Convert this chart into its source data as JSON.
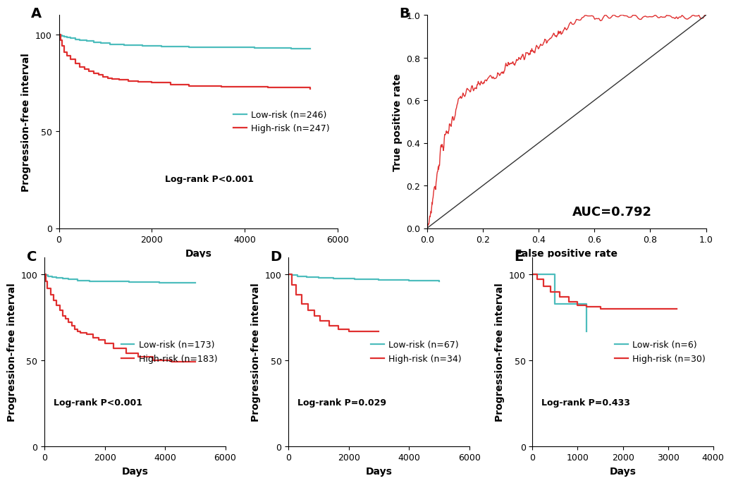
{
  "panel_A": {
    "low_risk_label": "Low-risk (n=246)",
    "high_risk_label": "High-risk (n=247)",
    "logrank_text": "Log-rank P<0.001",
    "low_color": "#4dbdbd",
    "high_color": "#e03030",
    "xlabel": "Days",
    "ylabel": "Progression-free interval",
    "xlim": [
      0,
      6000
    ],
    "ylim": [
      0,
      110
    ],
    "xticks": [
      0,
      2000,
      4000,
      6000
    ],
    "yticks": [
      0,
      50,
      100
    ],
    "low_x": [
      0,
      30,
      60,
      120,
      180,
      250,
      350,
      450,
      600,
      750,
      900,
      1100,
      1400,
      1800,
      2200,
      2800,
      3500,
      4200,
      5000,
      5400
    ],
    "low_y": [
      100,
      99.6,
      99.2,
      98.8,
      98.4,
      98.0,
      97.5,
      97.0,
      96.5,
      96.0,
      95.5,
      95.0,
      94.5,
      94.0,
      93.8,
      93.5,
      93.2,
      93.0,
      92.8,
      92.5
    ],
    "high_x": [
      0,
      30,
      60,
      120,
      180,
      250,
      350,
      450,
      550,
      650,
      750,
      850,
      950,
      1050,
      1150,
      1300,
      1500,
      1700,
      2000,
      2400,
      2800,
      3500,
      4500,
      5400
    ],
    "high_y": [
      100,
      97,
      94,
      91,
      89,
      87,
      85,
      83,
      82,
      81,
      80,
      79,
      78,
      77.5,
      77,
      76.5,
      76,
      75.5,
      75,
      74,
      73.5,
      73,
      72.5,
      72
    ]
  },
  "panel_B": {
    "auc_text": "AUC=0.792",
    "xlabel": "False positive rate",
    "ylabel": "True positive rate",
    "roc_color": "#e03030",
    "diag_color": "#333333",
    "xlim": [
      0,
      1.0
    ],
    "ylim": [
      0,
      1.0
    ],
    "xticks": [
      0.0,
      0.2,
      0.4,
      0.6,
      0.8,
      1.0
    ],
    "yticks": [
      0.0,
      0.2,
      0.4,
      0.6,
      0.8,
      1.0
    ]
  },
  "panel_C": {
    "low_risk_label": "Low-risk (n=173)",
    "high_risk_label": "High-risk (n=183)",
    "logrank_text": "Log-rank P<0.001",
    "low_color": "#4dbdbd",
    "high_color": "#e03030",
    "xlabel": "Days",
    "ylabel": "Progression-free interval",
    "xlim": [
      0,
      6000
    ],
    "ylim": [
      0,
      110
    ],
    "xticks": [
      0,
      2000,
      4000,
      6000
    ],
    "yticks": [
      0,
      50,
      100
    ],
    "low_x": [
      0,
      50,
      120,
      250,
      400,
      600,
      800,
      1100,
      1500,
      2000,
      2800,
      3800,
      5000
    ],
    "low_y": [
      100,
      99.5,
      99,
      98.5,
      98,
      97.5,
      97,
      96.5,
      96,
      95.8,
      95.5,
      95.3,
      95
    ],
    "high_x": [
      0,
      50,
      100,
      200,
      300,
      400,
      500,
      600,
      700,
      800,
      900,
      1000,
      1100,
      1200,
      1400,
      1600,
      1800,
      2000,
      2300,
      2700,
      3100,
      3600,
      4200,
      5000
    ],
    "high_y": [
      100,
      96,
      92,
      88,
      85,
      82,
      79,
      76,
      74,
      72,
      70,
      68,
      67,
      66,
      65,
      63,
      62,
      60,
      57,
      54,
      52,
      50,
      49,
      49
    ]
  },
  "panel_D": {
    "low_risk_label": "Low-risk (n=67)",
    "high_risk_label": "High-risk (n=34)",
    "logrank_text": "Log-rank P=0.029",
    "low_color": "#4dbdbd",
    "high_color": "#e03030",
    "xlabel": "Days",
    "ylabel": "Progression-free interval",
    "xlim": [
      0,
      6000
    ],
    "ylim": [
      0,
      110
    ],
    "xticks": [
      0,
      2000,
      4000,
      6000
    ],
    "yticks": [
      0,
      50,
      100
    ],
    "low_x": [
      0,
      100,
      300,
      600,
      1000,
      1500,
      2200,
      3000,
      4000,
      5000
    ],
    "low_y": [
      100,
      99.5,
      99,
      98.5,
      98,
      97.5,
      97,
      96.8,
      96.5,
      96
    ],
    "high_x": [
      0,
      100,
      250,
      450,
      650,
      850,
      1050,
      1350,
      1650,
      2000,
      2500,
      3000
    ],
    "high_y": [
      100,
      94,
      88,
      83,
      79,
      76,
      73,
      70,
      68,
      67,
      67,
      67
    ]
  },
  "panel_E": {
    "low_risk_label": "Low-risk (n=6)",
    "high_risk_label": "High-risk (n=30)",
    "logrank_text": "Log-rank P=0.433",
    "low_color": "#4dbdbd",
    "high_color": "#e03030",
    "xlabel": "Days",
    "ylabel": "Progression-free interval",
    "xlim": [
      0,
      4000
    ],
    "ylim": [
      0,
      110
    ],
    "xticks": [
      0,
      1000,
      2000,
      3000,
      4000
    ],
    "yticks": [
      0,
      50,
      100
    ],
    "low_x": [
      0,
      200,
      500,
      800,
      1200
    ],
    "low_y": [
      100,
      100,
      83,
      83,
      67
    ],
    "high_x": [
      0,
      100,
      250,
      400,
      600,
      800,
      1000,
      1200,
      1500,
      2000,
      2800,
      3200
    ],
    "high_y": [
      100,
      97,
      93,
      90,
      87,
      84,
      82,
      81,
      80,
      80,
      80,
      80
    ]
  },
  "panel_labels": [
    "A",
    "B",
    "C",
    "D",
    "E"
  ],
  "bg_color": "#ffffff",
  "label_fontsize": 10,
  "tick_fontsize": 9,
  "legend_fontsize": 9,
  "panel_label_fontsize": 14
}
